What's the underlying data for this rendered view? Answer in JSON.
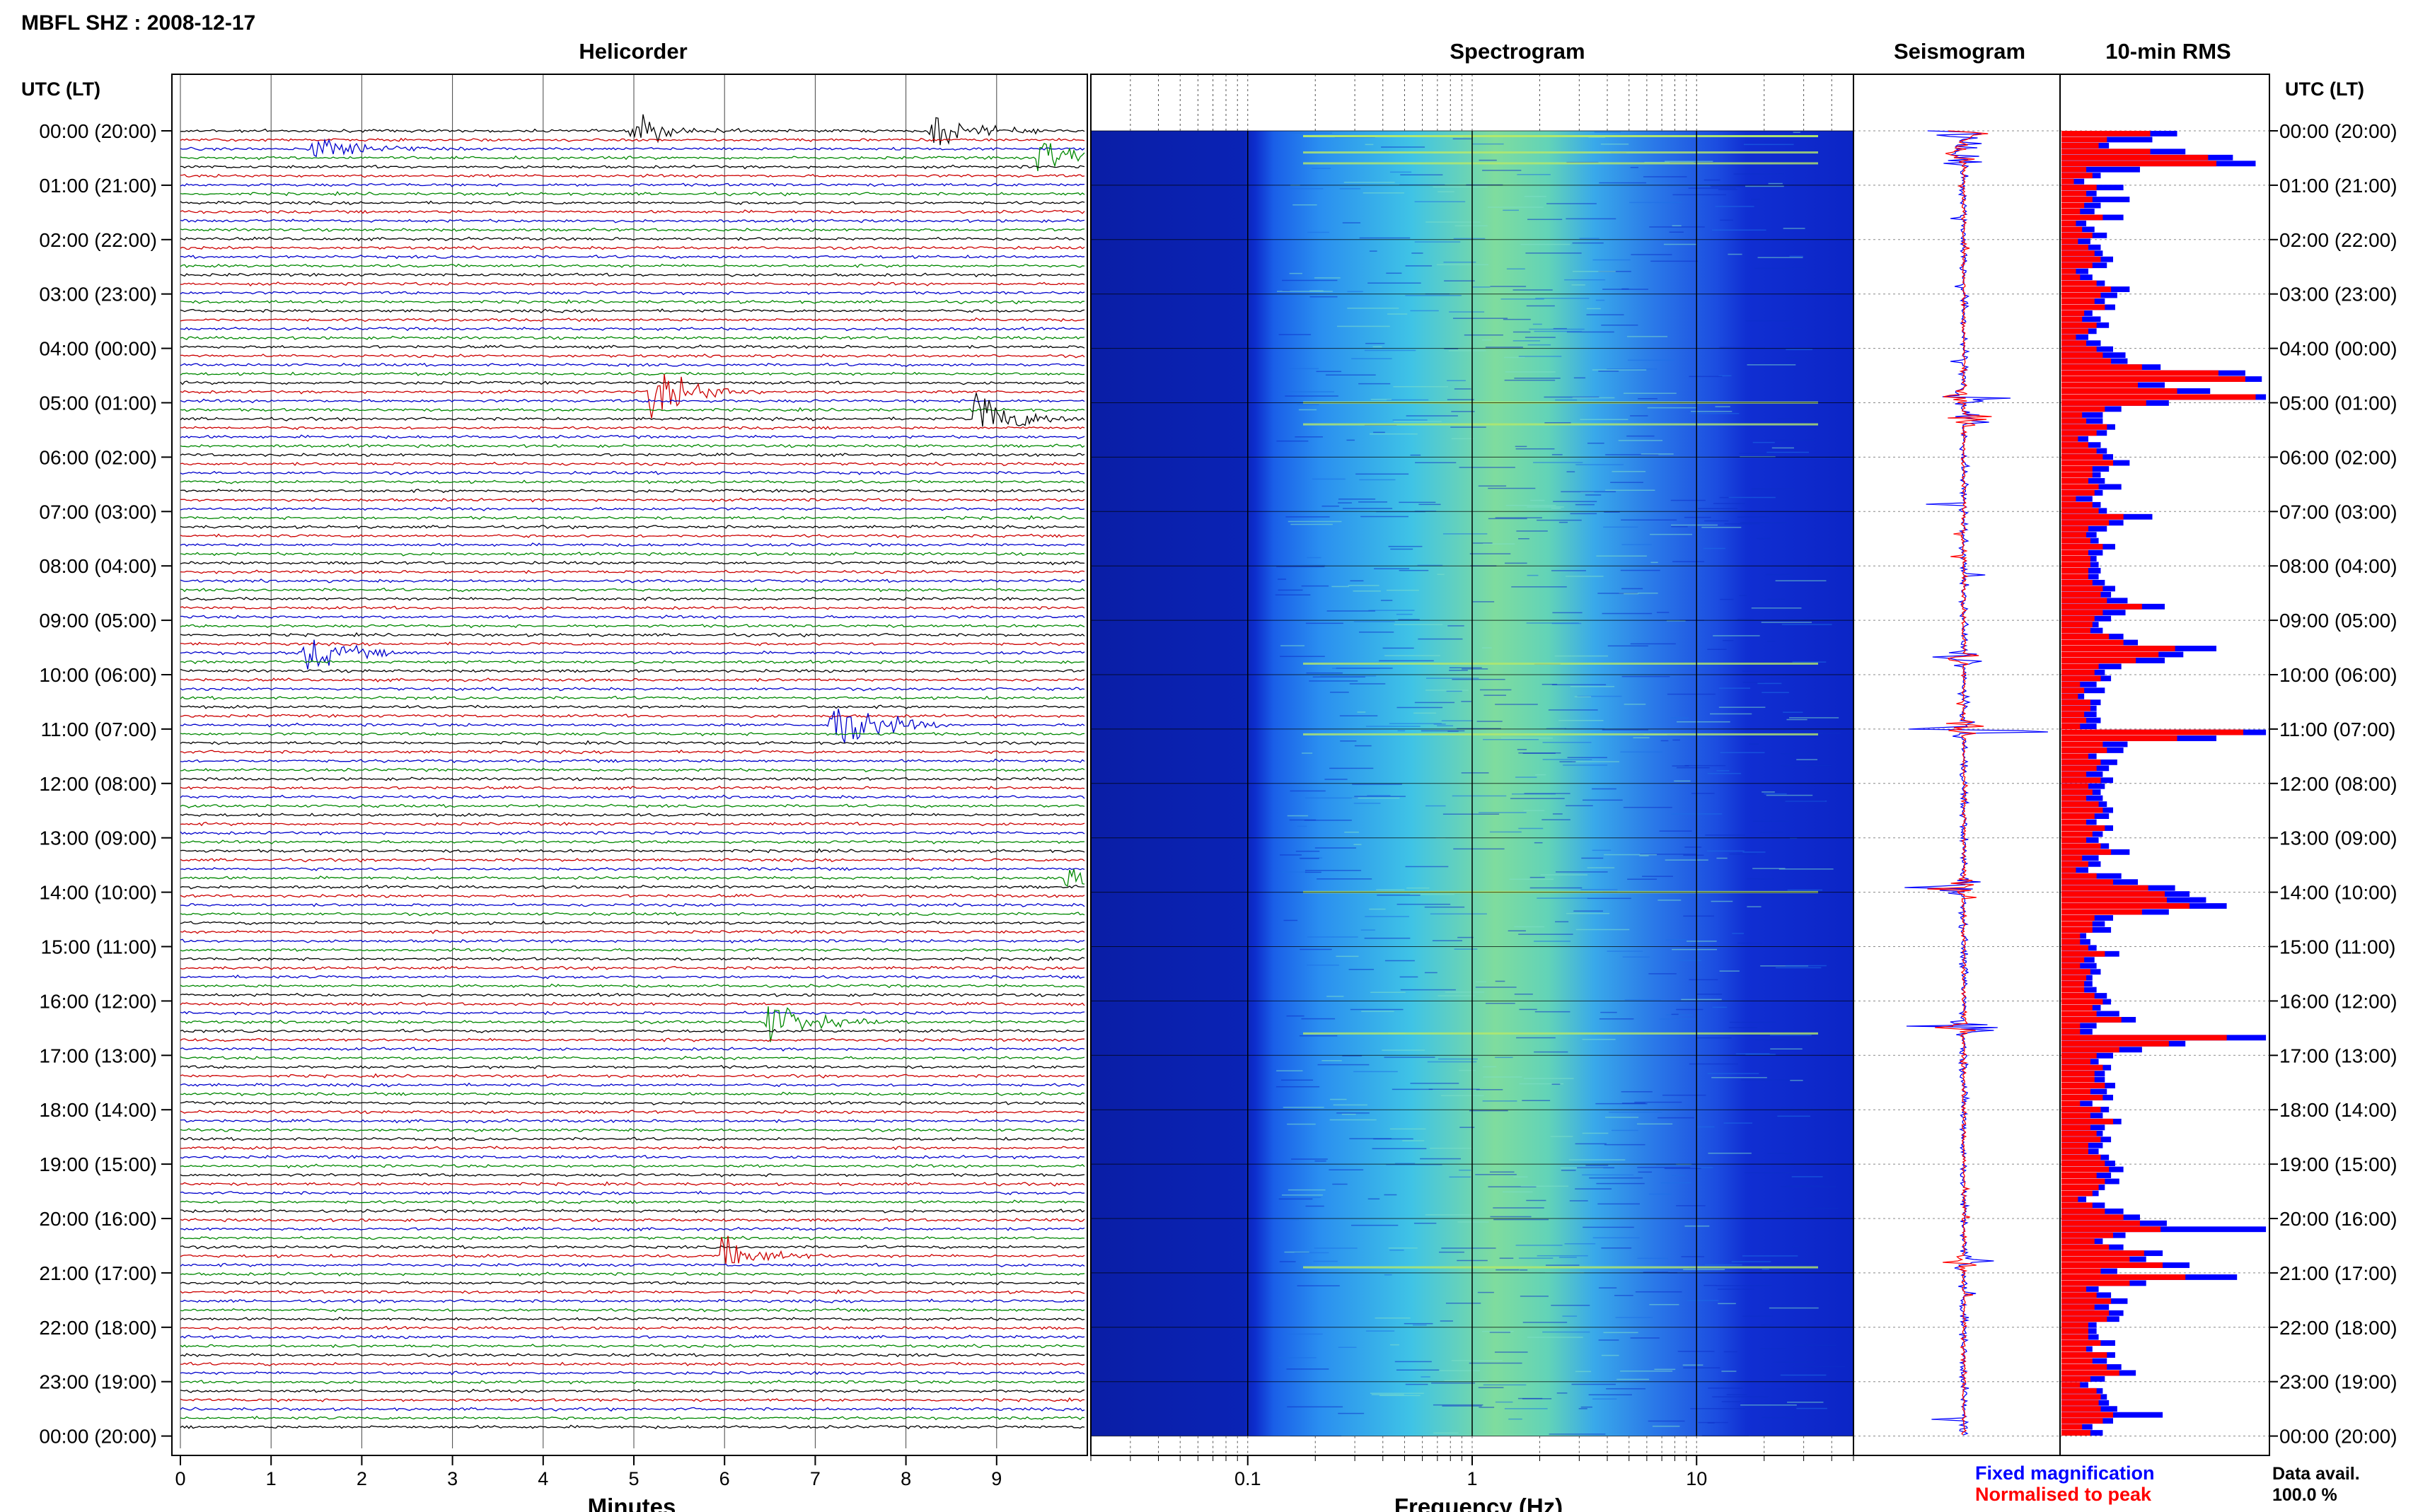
{
  "header": {
    "title": "MBFL SHZ : 2008-12-17"
  },
  "panels": {
    "helicorder": "Helicorder",
    "spectrogram": "Spectrogram",
    "seismogram": "Seismogram",
    "rms": "10-min RMS"
  },
  "time_axis": {
    "header": "UTC (LT)",
    "labels": [
      "00:00 (20:00)",
      "01:00 (21:00)",
      "02:00 (22:00)",
      "03:00 (23:00)",
      "04:00 (00:00)",
      "05:00 (01:00)",
      "06:00 (02:00)",
      "07:00 (03:00)",
      "08:00 (04:00)",
      "09:00 (05:00)",
      "10:00 (06:00)",
      "11:00 (07:00)",
      "12:00 (08:00)",
      "13:00 (09:00)",
      "14:00 (10:00)",
      "15:00 (11:00)",
      "16:00 (12:00)",
      "17:00 (13:00)",
      "18:00 (14:00)",
      "19:00 (15:00)",
      "20:00 (16:00)",
      "21:00 (17:00)",
      "22:00 (18:00)",
      "23:00 (19:00)",
      "00:00 (20:00)"
    ]
  },
  "helicorder_axis": {
    "xlabel": "Minutes",
    "ticks": [
      "0",
      "1",
      "2",
      "3",
      "4",
      "5",
      "6",
      "7",
      "8",
      "9"
    ]
  },
  "spectrogram_axis": {
    "xlabel": "Frequency (Hz)",
    "ticks": [
      "0.1",
      "1",
      "10"
    ]
  },
  "legend": {
    "fixed": "Fixed magnification",
    "normalised": "Normalised to peak"
  },
  "availability": {
    "label": "Data avail.",
    "value": "100.0 %"
  },
  "colors": {
    "trace_cycle": [
      "#000000",
      "#cc0000",
      "#0000cc",
      "#008800"
    ],
    "fixed": "#0000ff",
    "normalised": "#ff0000"
  },
  "chart_data": {
    "type": "heatmap",
    "station": "MBFL SHZ",
    "date": "2008-12-17",
    "helicorder": {
      "minutes_range": [
        0,
        10
      ],
      "rows_per_hour": 6,
      "events": [
        {
          "hour": 0.0,
          "minute": 5.0,
          "amplitude": 0.9
        },
        {
          "hour": 0.0,
          "minute": 8.3,
          "amplitude": 1.0
        },
        {
          "hour": 0.3,
          "minute": 1.5,
          "amplitude": 0.9
        },
        {
          "hour": 0.5,
          "minute": 9.5,
          "amplitude": 1.2
        },
        {
          "hour": 4.9,
          "minute": 5.2,
          "amplitude": 1.8
        },
        {
          "hour": 5.3,
          "minute": 8.8,
          "amplitude": 1.6
        },
        {
          "hour": 9.7,
          "minute": 1.4,
          "amplitude": 1.1
        },
        {
          "hour": 11.0,
          "minute": 7.2,
          "amplitude": 2.2
        },
        {
          "hour": 13.9,
          "minute": 9.8,
          "amplitude": 1.8
        },
        {
          "hour": 16.5,
          "minute": 6.5,
          "amplitude": 1.4
        },
        {
          "hour": 20.8,
          "minute": 6.0,
          "amplitude": 1.0
        }
      ]
    },
    "spectrogram": {
      "frequency_range_hz": [
        0.02,
        50
      ],
      "x_scale": "log",
      "peak_band_hz": [
        0.5,
        2.0
      ]
    },
    "rms_10min": {
      "fixed_magnification": [
        0.56,
        0.44,
        0.23,
        0.6,
        0.83,
        0.94,
        0.38,
        0.19,
        0.11,
        0.3,
        0.17,
        0.33,
        0.19,
        0.16,
        0.3,
        0.12,
        0.16,
        0.22,
        0.14,
        0.19,
        0.2,
        0.25,
        0.22,
        0.13,
        0.15,
        0.21,
        0.33,
        0.27,
        0.21,
        0.26,
        0.15,
        0.19,
        0.23,
        0.17,
        0.13,
        0.19,
        0.25,
        0.31,
        0.32,
        0.48,
        0.89,
        0.97,
        0.5,
        0.72,
        0.99,
        0.52,
        0.29,
        0.2,
        0.2,
        0.26,
        0.22,
        0.13,
        0.19,
        0.22,
        0.25,
        0.33,
        0.23,
        0.19,
        0.21,
        0.29,
        0.2,
        0.15,
        0.19,
        0.22,
        0.44,
        0.3,
        0.22,
        0.17,
        0.18,
        0.26,
        0.2,
        0.17,
        0.18,
        0.19,
        0.18,
        0.21,
        0.26,
        0.24,
        0.32,
        0.5,
        0.31,
        0.24,
        0.18,
        0.2,
        0.3,
        0.37,
        0.75,
        0.59,
        0.5,
        0.29,
        0.21,
        0.24,
        0.17,
        0.21,
        0.11,
        0.19,
        0.17,
        0.17,
        0.19,
        0.17,
        0.99,
        0.75,
        0.32,
        0.3,
        0.17,
        0.27,
        0.23,
        0.2,
        0.25,
        0.21,
        0.19,
        0.2,
        0.22,
        0.25,
        0.23,
        0.17,
        0.25,
        0.2,
        0.18,
        0.23,
        0.33,
        0.18,
        0.19,
        0.13,
        0.29,
        0.37,
        0.55,
        0.62,
        0.7,
        0.8,
        0.52,
        0.25,
        0.21,
        0.24,
        0.12,
        0.14,
        0.17,
        0.28,
        0.16,
        0.17,
        0.19,
        0.15,
        0.15,
        0.17,
        0.22,
        0.24,
        0.19,
        0.28,
        0.36,
        0.17,
        0.15,
        0.99,
        0.6,
        0.39,
        0.25,
        0.18,
        0.24,
        0.21,
        0.21,
        0.26,
        0.22,
        0.25,
        0.15,
        0.23,
        0.2,
        0.29,
        0.21,
        0.2,
        0.24,
        0.2,
        0.18,
        0.23,
        0.26,
        0.3,
        0.24,
        0.28,
        0.21,
        0.18,
        0.12,
        0.21,
        0.3,
        0.38,
        0.51,
        0.99,
        0.31,
        0.2,
        0.3,
        0.49,
        0.41,
        0.62,
        0.27,
        0.85,
        0.41,
        0.18,
        0.24,
        0.32,
        0.23,
        0.3,
        0.28,
        0.17,
        0.17,
        0.18,
        0.26,
        0.15,
        0.26,
        0.22,
        0.29,
        0.36,
        0.21,
        0.13,
        0.2,
        0.22,
        0.23,
        0.27,
        0.49,
        0.25,
        0.15,
        0.2
      ],
      "normalised_to_peak": [
        0.43,
        0.22,
        0.18,
        0.43,
        0.71,
        0.75,
        0.12,
        0.15,
        0.06,
        0.17,
        0.12,
        0.15,
        0.11,
        0.09,
        0.2,
        0.07,
        0.1,
        0.15,
        0.08,
        0.13,
        0.16,
        0.19,
        0.15,
        0.07,
        0.09,
        0.17,
        0.24,
        0.19,
        0.16,
        0.21,
        0.11,
        0.1,
        0.17,
        0.13,
        0.07,
        0.12,
        0.17,
        0.2,
        0.24,
        0.39,
        0.76,
        0.89,
        0.37,
        0.56,
        0.94,
        0.41,
        0.21,
        0.1,
        0.12,
        0.22,
        0.17,
        0.08,
        0.13,
        0.17,
        0.2,
        0.25,
        0.15,
        0.15,
        0.13,
        0.18,
        0.16,
        0.07,
        0.15,
        0.18,
        0.3,
        0.23,
        0.13,
        0.12,
        0.14,
        0.2,
        0.13,
        0.14,
        0.14,
        0.13,
        0.13,
        0.15,
        0.2,
        0.19,
        0.22,
        0.39,
        0.2,
        0.16,
        0.15,
        0.14,
        0.23,
        0.3,
        0.55,
        0.47,
        0.36,
        0.18,
        0.16,
        0.19,
        0.09,
        0.11,
        0.08,
        0.14,
        0.14,
        0.11,
        0.12,
        0.09,
        0.88,
        0.56,
        0.2,
        0.22,
        0.13,
        0.19,
        0.17,
        0.12,
        0.19,
        0.13,
        0.15,
        0.12,
        0.18,
        0.2,
        0.16,
        0.12,
        0.21,
        0.15,
        0.12,
        0.19,
        0.24,
        0.1,
        0.13,
        0.07,
        0.17,
        0.25,
        0.42,
        0.5,
        0.51,
        0.62,
        0.39,
        0.16,
        0.15,
        0.15,
        0.09,
        0.09,
        0.13,
        0.21,
        0.11,
        0.09,
        0.14,
        0.12,
        0.11,
        0.11,
        0.16,
        0.2,
        0.15,
        0.17,
        0.29,
        0.09,
        0.09,
        0.8,
        0.52,
        0.28,
        0.17,
        0.14,
        0.2,
        0.16,
        0.16,
        0.21,
        0.14,
        0.2,
        0.09,
        0.19,
        0.14,
        0.25,
        0.14,
        0.17,
        0.19,
        0.13,
        0.13,
        0.19,
        0.21,
        0.23,
        0.17,
        0.21,
        0.18,
        0.15,
        0.08,
        0.15,
        0.21,
        0.3,
        0.38,
        0.48,
        0.25,
        0.16,
        0.23,
        0.4,
        0.33,
        0.49,
        0.19,
        0.6,
        0.33,
        0.12,
        0.17,
        0.24,
        0.16,
        0.23,
        0.22,
        0.13,
        0.13,
        0.13,
        0.19,
        0.12,
        0.22,
        0.15,
        0.22,
        0.28,
        0.14,
        0.09,
        0.17,
        0.19,
        0.18,
        0.19,
        0.25,
        0.2,
        0.1,
        0.14
      ]
    }
  }
}
